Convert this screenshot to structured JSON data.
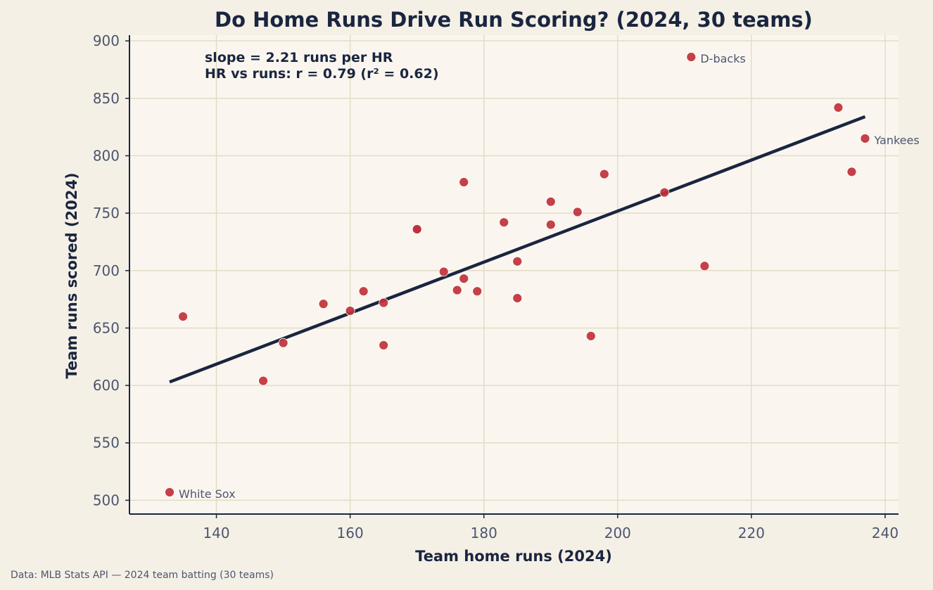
{
  "chart_data": {
    "type": "scatter",
    "title": "Do Home Runs Drive Run Scoring? (2024, 30 teams)",
    "xlabel": "Team home runs (2024)",
    "ylabel": "Team runs scored (2024)",
    "xlim": [
      127,
      242
    ],
    "ylim": [
      488,
      905
    ],
    "xticks": [
      140,
      160,
      180,
      200,
      220,
      240
    ],
    "yticks": [
      500,
      550,
      600,
      650,
      700,
      750,
      800,
      850,
      900
    ],
    "grid": true,
    "annotations": [
      "slope = 2.21 runs per HR",
      "HR vs runs: r = 0.79 (r² = 0.62)"
    ],
    "source": "Data: MLB Stats API — 2024 team batting (30 teams)",
    "trendline": {
      "x": [
        133,
        237
      ],
      "y": [
        603,
        834
      ]
    },
    "points": [
      {
        "x": 133,
        "y": 507,
        "label": "White Sox"
      },
      {
        "x": 135,
        "y": 660,
        "label": ""
      },
      {
        "x": 147,
        "y": 604,
        "label": ""
      },
      {
        "x": 150,
        "y": 637,
        "label": ""
      },
      {
        "x": 156,
        "y": 671,
        "label": ""
      },
      {
        "x": 160,
        "y": 665,
        "label": ""
      },
      {
        "x": 162,
        "y": 682,
        "label": ""
      },
      {
        "x": 165,
        "y": 635,
        "label": ""
      },
      {
        "x": 165,
        "y": 672,
        "label": ""
      },
      {
        "x": 170,
        "y": 736,
        "label": ""
      },
      {
        "x": 170,
        "y": 736,
        "label": ""
      },
      {
        "x": 174,
        "y": 699,
        "label": ""
      },
      {
        "x": 176,
        "y": 683,
        "label": ""
      },
      {
        "x": 177,
        "y": 693,
        "label": ""
      },
      {
        "x": 177,
        "y": 777,
        "label": ""
      },
      {
        "x": 179,
        "y": 682,
        "label": ""
      },
      {
        "x": 183,
        "y": 742,
        "label": ""
      },
      {
        "x": 185,
        "y": 708,
        "label": ""
      },
      {
        "x": 185,
        "y": 676,
        "label": ""
      },
      {
        "x": 190,
        "y": 760,
        "label": ""
      },
      {
        "x": 190,
        "y": 740,
        "label": ""
      },
      {
        "x": 194,
        "y": 751,
        "label": ""
      },
      {
        "x": 196,
        "y": 643,
        "label": ""
      },
      {
        "x": 198,
        "y": 784,
        "label": ""
      },
      {
        "x": 207,
        "y": 768,
        "label": ""
      },
      {
        "x": 211,
        "y": 886,
        "label": "D-backs"
      },
      {
        "x": 213,
        "y": 704,
        "label": ""
      },
      {
        "x": 233,
        "y": 842,
        "label": ""
      },
      {
        "x": 235,
        "y": 786,
        "label": ""
      },
      {
        "x": 237,
        "y": 815,
        "label": "Yankees"
      }
    ]
  },
  "colors": {
    "background": "#f5f0e6",
    "plot_background": "#faf6ef",
    "grid": "#e2dcc4",
    "axis": "#1a2540",
    "point": "#c0303a",
    "trendline": "#1a2540"
  }
}
